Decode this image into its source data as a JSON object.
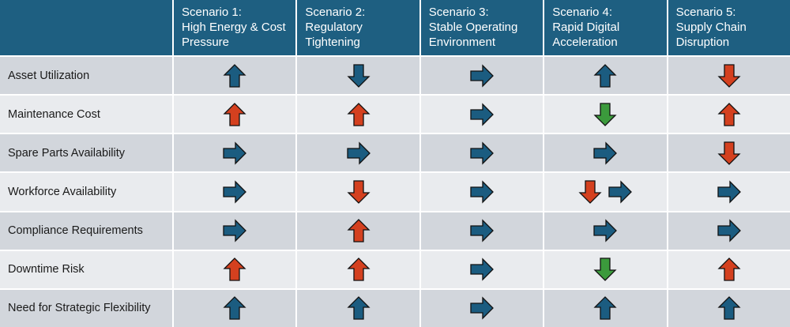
{
  "table": {
    "corner": "",
    "columns": [
      {
        "label": "Scenario 1:",
        "name": "High Energy & Cost Pressure"
      },
      {
        "label": "Scenario 2:",
        "name": "Regulatory Tightening"
      },
      {
        "label": "Scenario 3:",
        "name": "Stable Operating Environment"
      },
      {
        "label": "Scenario 4:",
        "name": "Rapid Digital Acceleration"
      },
      {
        "label": "Scenario 5:",
        "name": "Supply Chain Disruption"
      }
    ],
    "rows": [
      "Asset Utilization",
      "Maintenance Cost",
      "Spare Parts Availability",
      "Workforce Availability",
      "Compliance Requirements",
      "Downtime Risk",
      "Need for Strategic Flexibility"
    ]
  }
}
